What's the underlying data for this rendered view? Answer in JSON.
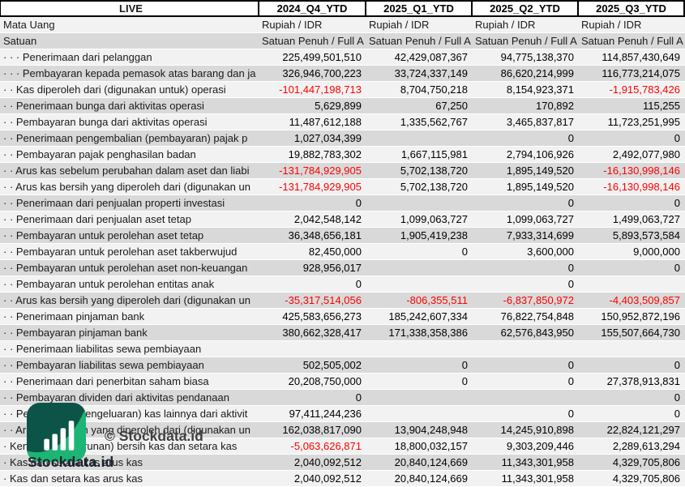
{
  "header": {
    "live_label": "LIVE",
    "columns": [
      "2024_Q4_YTD",
      "2025_Q1_YTD",
      "2025_Q2_YTD",
      "2025_Q3_YTD"
    ]
  },
  "meta_rows": [
    {
      "label": "Mata Uang",
      "values": [
        "Rupiah / IDR",
        "Rupiah / IDR",
        "Rupiah / IDR",
        "Rupiah / IDR"
      ]
    },
    {
      "label": "Satuan",
      "values": [
        "Satuan Penuh / Full A",
        "Satuan Penuh / Full A",
        "Satuan Penuh / Full A",
        "Satuan Penuh / Full A"
      ]
    }
  ],
  "rows": [
    {
      "indent": 3,
      "label": "Penerimaan dari pelanggan",
      "values": [
        "225,499,501,510",
        "42,429,087,367",
        "94,775,138,370",
        "114,857,430,649"
      ]
    },
    {
      "indent": 3,
      "label": "Pembayaran kepada pemasok atas barang dan ja",
      "values": [
        "326,946,700,223",
        "33,724,337,149",
        "86,620,214,999",
        "116,773,214,075"
      ]
    },
    {
      "indent": 2,
      "label": "Kas diperoleh dari (digunakan untuk) operasi",
      "values": [
        "-101,447,198,713",
        "8,704,750,218",
        "8,154,923,371",
        "-1,915,783,426"
      ]
    },
    {
      "indent": 2,
      "label": "Penerimaan bunga dari aktivitas operasi",
      "values": [
        "5,629,899",
        "67,250",
        "170,892",
        "115,255"
      ]
    },
    {
      "indent": 2,
      "label": "Pembayaran bunga dari aktivitas operasi",
      "values": [
        "11,487,612,188",
        "1,335,562,767",
        "3,465,837,817",
        "11,723,251,995"
      ]
    },
    {
      "indent": 2,
      "label": "Penerimaan pengembalian (pembayaran) pajak p",
      "values": [
        "1,027,034,399",
        "",
        "0",
        "0"
      ]
    },
    {
      "indent": 2,
      "label": "Pembayaran pajak penghasilan badan",
      "values": [
        "19,882,783,302",
        "1,667,115,981",
        "2,794,106,926",
        "2,492,077,980"
      ]
    },
    {
      "indent": 2,
      "label": "Arus kas sebelum perubahan dalam aset dan liabi",
      "values": [
        "-131,784,929,905",
        "5,702,138,720",
        "1,895,149,520",
        "-16,130,998,146"
      ]
    },
    {
      "indent": 2,
      "label": "Arus kas bersih yang diperoleh dari (digunakan un",
      "values": [
        "-131,784,929,905",
        "5,702,138,720",
        "1,895,149,520",
        "-16,130,998,146"
      ]
    },
    {
      "indent": 2,
      "label": "Penerimaan dari penjualan properti investasi",
      "values": [
        "0",
        "",
        "0",
        "0"
      ]
    },
    {
      "indent": 2,
      "label": "Penerimaan dari penjualan aset tetap",
      "values": [
        "2,042,548,142",
        "1,099,063,727",
        "1,099,063,727",
        "1,499,063,727"
      ]
    },
    {
      "indent": 2,
      "label": "Pembayaran untuk perolehan aset tetap",
      "values": [
        "36,348,656,181",
        "1,905,419,238",
        "7,933,314,699",
        "5,893,573,584"
      ]
    },
    {
      "indent": 2,
      "label": "Pembayaran untuk perolehan aset takberwujud",
      "values": [
        "82,450,000",
        "0",
        "3,600,000",
        "9,000,000"
      ]
    },
    {
      "indent": 2,
      "label": "Pembayaran untuk perolehan aset non-keuangan",
      "values": [
        "928,956,017",
        "",
        "0",
        "0"
      ]
    },
    {
      "indent": 2,
      "label": "Pembayaran untuk perolehan entitas anak",
      "values": [
        "0",
        "",
        "0",
        ""
      ]
    },
    {
      "indent": 2,
      "label": "Arus kas bersih yang diperoleh dari (digunakan un",
      "values": [
        "-35,317,514,056",
        "-806,355,511",
        "-6,837,850,972",
        "-4,403,509,857"
      ]
    },
    {
      "indent": 2,
      "label": "Penerimaan pinjaman bank",
      "values": [
        "425,583,656,273",
        "185,242,607,334",
        "76,822,754,848",
        "150,952,872,196"
      ]
    },
    {
      "indent": 2,
      "label": "Pembayaran pinjaman bank",
      "values": [
        "380,662,328,417",
        "171,338,358,386",
        "62,576,843,950",
        "155,507,664,730"
      ]
    },
    {
      "indent": 2,
      "label": "Penerimaan liabilitas sewa pembiayaan",
      "values": [
        "",
        "",
        "",
        ""
      ]
    },
    {
      "indent": 2,
      "label": "Pembayaran liabilitas sewa pembiayaan",
      "values": [
        "502,505,002",
        "0",
        "0",
        "0"
      ]
    },
    {
      "indent": 2,
      "label": "Penerimaan dari penerbitan saham biasa",
      "values": [
        "20,208,750,000",
        "0",
        "0",
        "27,378,913,831"
      ]
    },
    {
      "indent": 2,
      "label": "Pembayaran dividen dari aktivitas pendanaan",
      "values": [
        "0",
        "",
        "",
        "0"
      ]
    },
    {
      "indent": 2,
      "label": "Penerimaan (pengeluaran) kas lainnya dari aktivit",
      "values": [
        "97,411,244,236",
        "",
        "0",
        "0"
      ]
    },
    {
      "indent": 2,
      "label": "Arus kas bersih yang diperoleh dari (digunakan un",
      "values": [
        "162,038,817,090",
        "13,904,248,948",
        "14,245,910,898",
        "22,824,121,297"
      ]
    },
    {
      "indent": 1,
      "label": "Kenaikan (penurunan) bersih kas dan setara kas",
      "values": [
        "-5,063,626,871",
        "18,800,032,157",
        "9,303,209,446",
        "2,289,613,294"
      ]
    },
    {
      "indent": 1,
      "label": "Kas dan setara kas arus kas",
      "values": [
        "2,040,092,512",
        "20,840,124,669",
        "11,343,301,958",
        "4,329,705,806"
      ]
    },
    {
      "indent": 1,
      "label": "Kas dan setara kas arus kas",
      "values": [
        "2,040,092,512",
        "20,840,124,669",
        "11,343,301,958",
        "4,329,705,806"
      ]
    }
  ],
  "watermark": {
    "brand": "Stockdata.id",
    "copyright": "© Stockdata.id"
  },
  "colors": {
    "negative": "#ff0000",
    "row_light": "#f2f2f2",
    "row_dark": "#d9d9d9",
    "logo_dark_teal": "#0c5448",
    "logo_green": "#1cb576"
  }
}
